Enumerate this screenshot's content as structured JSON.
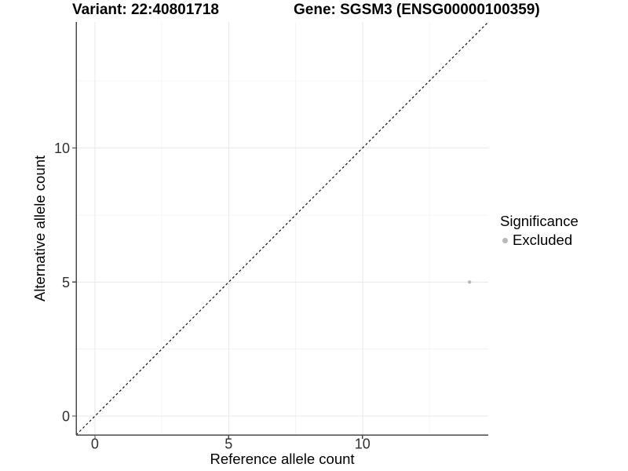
{
  "chart_data": {
    "type": "scatter",
    "titles": {
      "left": "Variant: 22:40801718",
      "right": "Gene: SGSM3 (ENSG00000100359)"
    },
    "xlabel": "Reference allele count",
    "ylabel": "Alternative allele count",
    "xlim": [
      -0.7,
      14.7
    ],
    "ylim": [
      -0.7,
      14.7
    ],
    "xticks": [
      0,
      5,
      10
    ],
    "yticks": [
      0,
      5,
      10
    ],
    "minor_xticks": [
      2.5,
      7.5,
      12.5
    ],
    "minor_yticks": [
      2.5,
      7.5,
      12.5
    ],
    "grid": true,
    "identity_line": {
      "slope": 1,
      "intercept": 0,
      "style": "dashed",
      "color": "#111111"
    },
    "series": [
      {
        "name": "Excluded",
        "color": "#b9b9b9",
        "points": [
          {
            "x": 14,
            "y": 5
          }
        ]
      }
    ],
    "legend": {
      "title": "Significance",
      "position": "right",
      "items": [
        {
          "label": "Excluded",
          "color": "#b9b9b9"
        }
      ]
    },
    "colors": {
      "background": "#ffffff",
      "grid_major": "#e9e9e9",
      "grid_minor": "#f4f4f4",
      "axis_line": "#4a4a4a",
      "tick_label": "#303030"
    }
  }
}
